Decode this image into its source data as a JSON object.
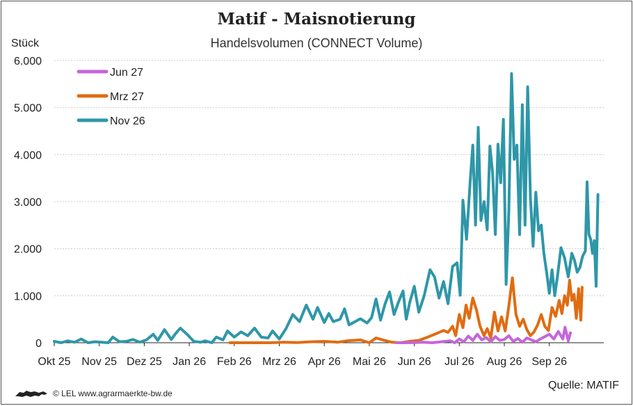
{
  "header": {
    "title": "Matif - Maisnotierung",
    "subtitle": "Handelsvolumen (CONNECT Volume)",
    "unit": "Stück"
  },
  "footer": {
    "copyright": "© LEL www.agrarmaerkte-bw.de",
    "source": "Quelle: MATIF"
  },
  "chart_data": {
    "type": "line",
    "title": "Matif - Maisnotierung",
    "subtitle": "Handelsvolumen (CONNECT Volume)",
    "ylabel": "Stück",
    "ylim": [
      0,
      6000
    ],
    "yticks": [
      0,
      1000,
      2000,
      3000,
      4000,
      5000,
      6000
    ],
    "ytick_labels": [
      "0",
      "1.000",
      "2.000",
      "3.000",
      "4.000",
      "5.000",
      "6.000"
    ],
    "x_months": [
      "Okt 25",
      "Nov 25",
      "Dez 25",
      "Jan 26",
      "Feb 26",
      "Mrz 26",
      "Apr 26",
      "Mai 26",
      "Jun 26",
      "Jul 26",
      "Aug 26",
      "Sep 26"
    ],
    "x_unit": "months since Okt 25 (0 = Okt 25)",
    "grid": true,
    "legend_position": "top-left",
    "series": [
      {
        "name": "Jun 27",
        "color": "#c466d9",
        "points": [
          [
            7.6,
            0
          ],
          [
            7.8,
            0
          ],
          [
            8.0,
            5
          ],
          [
            8.2,
            10
          ],
          [
            8.4,
            0
          ],
          [
            8.6,
            20
          ],
          [
            8.8,
            40
          ],
          [
            8.9,
            0
          ],
          [
            9.0,
            80
          ],
          [
            9.1,
            20
          ],
          [
            9.2,
            140
          ],
          [
            9.3,
            50
          ],
          [
            9.4,
            180
          ],
          [
            9.5,
            60
          ],
          [
            9.6,
            110
          ],
          [
            9.7,
            20
          ],
          [
            9.8,
            130
          ],
          [
            9.9,
            50
          ],
          [
            10.0,
            70
          ],
          [
            10.1,
            150
          ],
          [
            10.2,
            30
          ],
          [
            10.3,
            90
          ],
          [
            10.4,
            10
          ],
          [
            10.5,
            100
          ],
          [
            10.6,
            60
          ],
          [
            10.7,
            20
          ],
          [
            10.8,
            80
          ],
          [
            10.9,
            130
          ],
          [
            11.0,
            180
          ],
          [
            11.1,
            80
          ],
          [
            11.2,
            240
          ],
          [
            11.3,
            80
          ],
          [
            11.35,
            330
          ],
          [
            11.42,
            40
          ],
          [
            11.47,
            210
          ]
        ]
      },
      {
        "name": "Mrz 27",
        "color": "#e06c12",
        "points": [
          [
            3.9,
            0
          ],
          [
            4.3,
            0
          ],
          [
            4.8,
            0
          ],
          [
            5.1,
            10
          ],
          [
            5.4,
            5
          ],
          [
            5.7,
            20
          ],
          [
            6.0,
            30
          ],
          [
            6.3,
            10
          ],
          [
            6.5,
            40
          ],
          [
            6.8,
            60
          ],
          [
            7.0,
            0
          ],
          [
            7.15,
            100
          ],
          [
            7.3,
            60
          ],
          [
            7.5,
            10
          ],
          [
            7.7,
            0
          ],
          [
            7.9,
            30
          ],
          [
            8.1,
            50
          ],
          [
            8.3,
            120
          ],
          [
            8.5,
            200
          ],
          [
            8.65,
            260
          ],
          [
            8.75,
            220
          ],
          [
            8.85,
            350
          ],
          [
            8.92,
            150
          ],
          [
            9.0,
            600
          ],
          [
            9.08,
            320
          ],
          [
            9.15,
            800
          ],
          [
            9.22,
            520
          ],
          [
            9.3,
            950
          ],
          [
            9.38,
            700
          ],
          [
            9.46,
            350
          ],
          [
            9.55,
            150
          ],
          [
            9.62,
            300
          ],
          [
            9.7,
            100
          ],
          [
            9.78,
            650
          ],
          [
            9.86,
            250
          ],
          [
            9.94,
            550
          ],
          [
            10.02,
            250
          ],
          [
            10.1,
            780
          ],
          [
            10.18,
            1380
          ],
          [
            10.26,
            600
          ],
          [
            10.34,
            350
          ],
          [
            10.42,
            500
          ],
          [
            10.5,
            280
          ],
          [
            10.58,
            150
          ],
          [
            10.66,
            230
          ],
          [
            10.74,
            380
          ],
          [
            10.82,
            600
          ],
          [
            10.9,
            350
          ],
          [
            10.98,
            260
          ],
          [
            11.06,
            750
          ],
          [
            11.14,
            560
          ],
          [
            11.22,
            900
          ],
          [
            11.28,
            620
          ],
          [
            11.34,
            1000
          ],
          [
            11.4,
            800
          ],
          [
            11.45,
            1330
          ],
          [
            11.5,
            900
          ],
          [
            11.55,
            1030
          ],
          [
            11.6,
            520
          ],
          [
            11.65,
            1150
          ],
          [
            11.7,
            480
          ],
          [
            11.73,
            1180
          ]
        ]
      },
      {
        "name": "Nov 26",
        "color": "#2e97a8",
        "points": [
          [
            0.0,
            30
          ],
          [
            0.15,
            0
          ],
          [
            0.3,
            40
          ],
          [
            0.45,
            10
          ],
          [
            0.6,
            80
          ],
          [
            0.75,
            0
          ],
          [
            0.9,
            20
          ],
          [
            1.05,
            10
          ],
          [
            1.2,
            0
          ],
          [
            1.3,
            120
          ],
          [
            1.45,
            20
          ],
          [
            1.6,
            30
          ],
          [
            1.75,
            70
          ],
          [
            1.9,
            10
          ],
          [
            2.05,
            60
          ],
          [
            2.2,
            180
          ],
          [
            2.3,
            50
          ],
          [
            2.45,
            280
          ],
          [
            2.6,
            70
          ],
          [
            2.7,
            200
          ],
          [
            2.8,
            310
          ],
          [
            2.95,
            180
          ],
          [
            3.1,
            30
          ],
          [
            3.25,
            10
          ],
          [
            3.35,
            40
          ],
          [
            3.5,
            0
          ],
          [
            3.6,
            120
          ],
          [
            3.75,
            60
          ],
          [
            3.85,
            250
          ],
          [
            4.0,
            120
          ],
          [
            4.15,
            230
          ],
          [
            4.3,
            150
          ],
          [
            4.45,
            310
          ],
          [
            4.6,
            120
          ],
          [
            4.75,
            100
          ],
          [
            4.85,
            250
          ],
          [
            5.0,
            80
          ],
          [
            5.15,
            300
          ],
          [
            5.3,
            600
          ],
          [
            5.45,
            450
          ],
          [
            5.6,
            800
          ],
          [
            5.75,
            500
          ],
          [
            5.85,
            750
          ],
          [
            6.0,
            430
          ],
          [
            6.1,
            620
          ],
          [
            6.2,
            450
          ],
          [
            6.35,
            500
          ],
          [
            6.45,
            720
          ],
          [
            6.55,
            380
          ],
          [
            6.65,
            430
          ],
          [
            6.8,
            510
          ],
          [
            6.95,
            420
          ],
          [
            7.05,
            530
          ],
          [
            7.15,
            930
          ],
          [
            7.25,
            480
          ],
          [
            7.35,
            820
          ],
          [
            7.45,
            1080
          ],
          [
            7.55,
            600
          ],
          [
            7.65,
            870
          ],
          [
            7.75,
            1100
          ],
          [
            7.82,
            500
          ],
          [
            7.9,
            860
          ],
          [
            8.0,
            1200
          ],
          [
            8.1,
            650
          ],
          [
            8.22,
            1000
          ],
          [
            8.35,
            1550
          ],
          [
            8.45,
            1400
          ],
          [
            8.55,
            950
          ],
          [
            8.65,
            1300
          ],
          [
            8.75,
            830
          ],
          [
            8.85,
            1620
          ],
          [
            8.95,
            1700
          ],
          [
            9.02,
            1010
          ],
          [
            9.08,
            3030
          ],
          [
            9.16,
            2200
          ],
          [
            9.24,
            3400
          ],
          [
            9.3,
            4200
          ],
          [
            9.36,
            2500
          ],
          [
            9.42,
            4580
          ],
          [
            9.48,
            2600
          ],
          [
            9.55,
            3000
          ],
          [
            9.62,
            2400
          ],
          [
            9.68,
            4180
          ],
          [
            9.74,
            3600
          ],
          [
            9.8,
            2300
          ],
          [
            9.86,
            4220
          ],
          [
            9.92,
            3400
          ],
          [
            9.98,
            4750
          ],
          [
            10.04,
            1240
          ],
          [
            10.1,
            2800
          ],
          [
            10.16,
            5720
          ],
          [
            10.22,
            3900
          ],
          [
            10.28,
            4200
          ],
          [
            10.34,
            2300
          ],
          [
            10.4,
            5060
          ],
          [
            10.46,
            2500
          ],
          [
            10.52,
            5440
          ],
          [
            10.58,
            3100
          ],
          [
            10.64,
            2050
          ],
          [
            10.7,
            3200
          ],
          [
            10.76,
            2380
          ],
          [
            10.82,
            2500
          ],
          [
            10.88,
            1900
          ],
          [
            10.94,
            1500
          ],
          [
            11.0,
            1050
          ],
          [
            11.06,
            1550
          ],
          [
            11.12,
            1000
          ],
          [
            11.18,
            1400
          ],
          [
            11.26,
            2020
          ],
          [
            11.34,
            1800
          ],
          [
            11.42,
            1400
          ],
          [
            11.5,
            1900
          ],
          [
            11.56,
            1750
          ],
          [
            11.62,
            1500
          ],
          [
            11.68,
            1600
          ],
          [
            11.74,
            1840
          ],
          [
            11.8,
            1950
          ],
          [
            11.84,
            3420
          ],
          [
            11.88,
            2300
          ],
          [
            11.92,
            2200
          ],
          [
            11.96,
            1900
          ],
          [
            12.0,
            2170
          ],
          [
            12.04,
            1200
          ],
          [
            12.08,
            3150
          ]
        ]
      }
    ]
  }
}
